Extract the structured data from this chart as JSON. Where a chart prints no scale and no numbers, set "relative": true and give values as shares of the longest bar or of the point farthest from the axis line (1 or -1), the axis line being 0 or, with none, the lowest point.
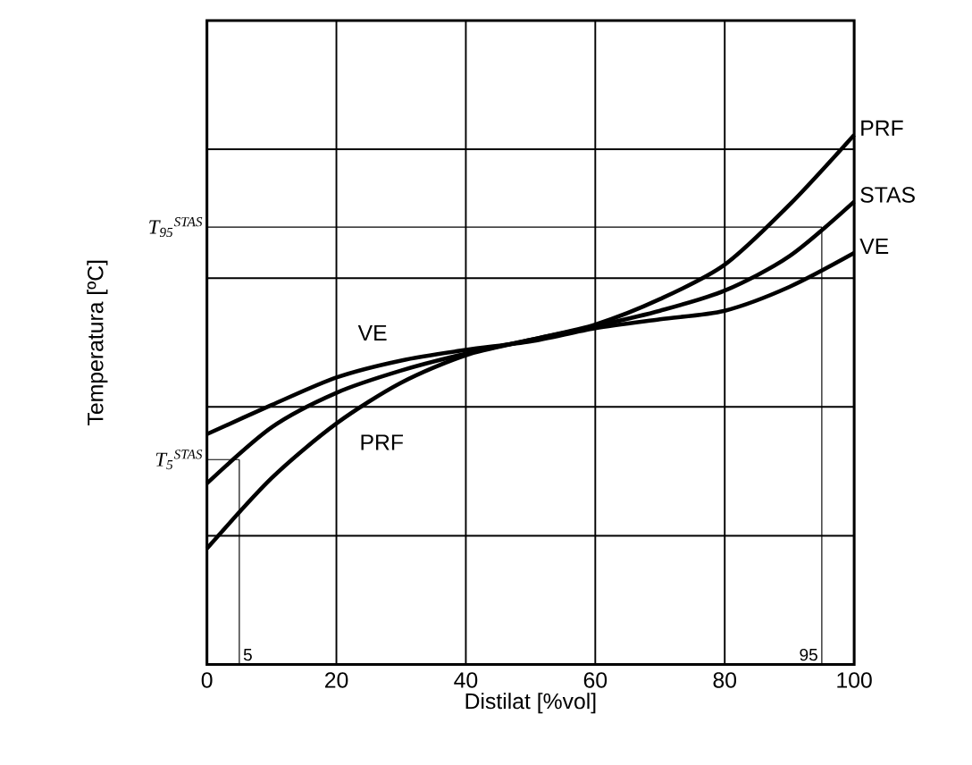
{
  "chart_data": {
    "type": "line",
    "xlabel": "Distilat [%vol]",
    "ylabel": "Temperatura [ºC]",
    "relative": true,
    "x": [
      0,
      10,
      20,
      30,
      40,
      50,
      60,
      70,
      80,
      90,
      100
    ],
    "series": [
      {
        "name": "PRF",
        "color": "#000000",
        "values": [
          0.219,
          0.352,
          0.455,
          0.532,
          0.584,
          0.613,
          0.642,
          0.69,
          0.755,
          0.868,
          1.0
        ]
      },
      {
        "name": "STAS",
        "color": "#000000",
        "values": [
          0.342,
          0.448,
          0.513,
          0.555,
          0.587,
          0.613,
          0.639,
          0.668,
          0.706,
          0.771,
          0.874
        ]
      },
      {
        "name": "VE",
        "color": "#000000",
        "values": [
          0.435,
          0.49,
          0.542,
          0.574,
          0.594,
          0.61,
          0.635,
          0.652,
          0.668,
          0.713,
          0.777
        ]
      }
    ],
    "xlim": [
      0,
      100
    ],
    "xticks": [
      0,
      20,
      40,
      60,
      80,
      100
    ],
    "grid": true,
    "marker": "none",
    "line_style": "solid",
    "ref_lines": [
      {
        "axis": "y",
        "value": 0.387,
        "label": "T$_{5}$$^{STAS}$",
        "color": "#000000"
      },
      {
        "axis": "y",
        "value": 0.826,
        "label": "T$_{95}$$^{STAS}$",
        "color": "#000000"
      },
      {
        "axis": "x",
        "value": 5,
        "label": "5",
        "color": "#000000"
      },
      {
        "axis": "x",
        "value": 95,
        "label": "95",
        "color": "#000000"
      }
    ],
    "annotations": [
      "VE",
      "PRF"
    ]
  }
}
